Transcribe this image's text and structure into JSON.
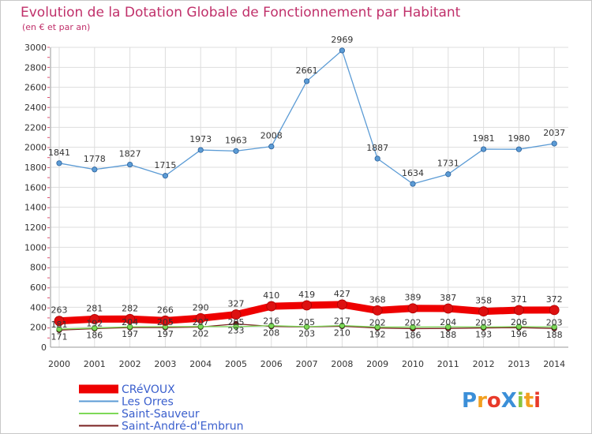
{
  "chart_data": {
    "type": "line",
    "title": "Evolution de la Dotation Globale de Fonctionnement par Habitant",
    "subtitle": "(en € et par an)",
    "x": [
      "2000",
      "2001",
      "2002",
      "2003",
      "2004",
      "2005",
      "2006",
      "2007",
      "2008",
      "2009",
      "2010",
      "2011",
      "2012",
      "2013",
      "2014"
    ],
    "ylim": [
      0,
      3000
    ],
    "yticks": [
      0,
      200,
      400,
      600,
      800,
      1000,
      1200,
      1400,
      1600,
      1800,
      2000,
      2200,
      2400,
      2600,
      2800,
      3000
    ],
    "grid": true,
    "legend_position": "bottom-left",
    "series": [
      {
        "name": "CRéVOUX",
        "color": "#ee0000",
        "values": [
          263,
          281,
          282,
          266,
          290,
          327,
          410,
          419,
          427,
          368,
          389,
          387,
          358,
          371,
          372
        ],
        "labels": [
          "263",
          "281",
          "282",
          "266",
          "290",
          "327",
          "410",
          "419",
          "427",
          "368",
          "389",
          "387",
          "358",
          "371",
          "372"
        ]
      },
      {
        "name": "Les Orres",
        "color": "#5b9bd5",
        "values": [
          1841,
          1778,
          1827,
          1715,
          1973,
          1963,
          2008,
          2661,
          2969,
          1887,
          1634,
          1731,
          1981,
          1980,
          2037
        ],
        "labels": [
          "1841",
          "1778",
          "1827",
          "1715",
          "1973",
          "1963",
          "2008",
          "2661",
          "2969",
          "1887",
          "1634",
          "1731",
          "1981",
          "1980",
          "2037"
        ]
      },
      {
        "name": "Saint-Sauveur",
        "color": "#7dd957",
        "values": [
          181,
          192,
          204,
          205,
          207,
          205,
          216,
          205,
          217,
          202,
          202,
          204,
          203,
          206,
          203
        ],
        "labels": [
          "181",
          "192",
          "204",
          "205",
          "207",
          "205",
          "216",
          "205",
          "217",
          "202",
          "202",
          "204",
          "203",
          "206",
          "203"
        ]
      },
      {
        "name": "Saint-André-d'Embrun",
        "color": "#7a2020",
        "values": [
          171,
          186,
          197,
          197,
          202,
          233,
          208,
          203,
          210,
          192,
          186,
          188,
          193,
          196,
          188
        ],
        "labels": [
          "171",
          "186",
          "197",
          "197",
          "202",
          "233",
          "208",
          "203",
          "210",
          "192",
          "186",
          "188",
          "193",
          "196",
          "188"
        ]
      }
    ]
  },
  "brand": {
    "text": "ProXiti",
    "letter_colors": [
      "#3b8fd8",
      "#f2a020",
      "#e83a2a",
      "#3b8fd8",
      "#88c540",
      "#f2a020",
      "#e83a2a"
    ]
  }
}
